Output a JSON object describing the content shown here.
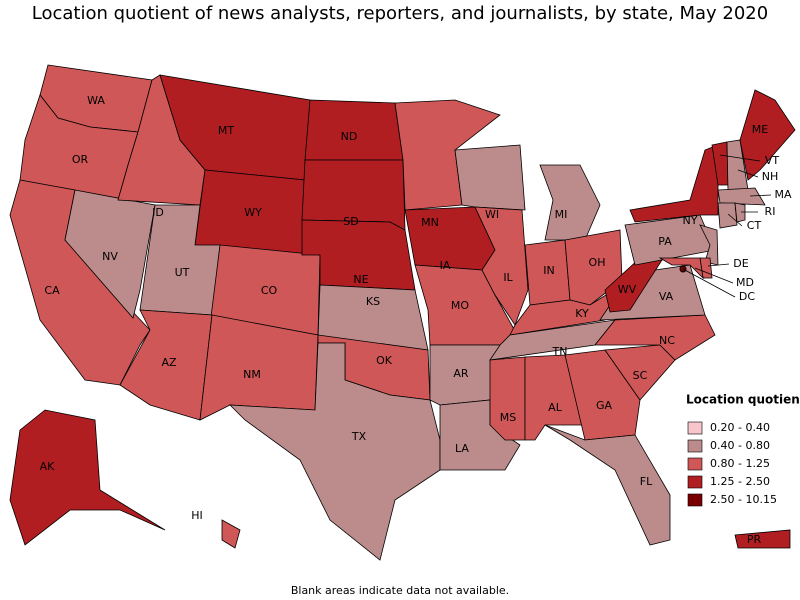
{
  "title": "Location quotient of news analysts, reporters, and journalists, by state, May 2020",
  "note": "Blank areas indicate data not available.",
  "legend": {
    "title": "Location quotient",
    "items": [
      {
        "label": "0.20 - 0.40",
        "color": "#f7c6cc"
      },
      {
        "label": "0.40 - 0.80",
        "color": "#bc8c8c"
      },
      {
        "label": "0.80 - 1.25",
        "color": "#cf5757"
      },
      {
        "label": "1.25 - 2.50",
        "color": "#b01e22"
      },
      {
        "label": "2.50 - 10.15",
        "color": "#7a0000"
      }
    ]
  },
  "states": [
    {
      "abbr": "WA",
      "class": "0.80 - 1.25"
    },
    {
      "abbr": "OR",
      "class": "0.80 - 1.25"
    },
    {
      "abbr": "CA",
      "class": "0.80 - 1.25"
    },
    {
      "abbr": "NV",
      "class": "0.40 - 0.80"
    },
    {
      "abbr": "ID",
      "class": "0.80 - 1.25"
    },
    {
      "abbr": "MT",
      "class": "1.25 - 2.50"
    },
    {
      "abbr": "WY",
      "class": "1.25 - 2.50"
    },
    {
      "abbr": "UT",
      "class": "0.40 - 0.80"
    },
    {
      "abbr": "CO",
      "class": "0.80 - 1.25"
    },
    {
      "abbr": "AZ",
      "class": "0.80 - 1.25"
    },
    {
      "abbr": "NM",
      "class": "0.80 - 1.25"
    },
    {
      "abbr": "ND",
      "class": "1.25 - 2.50"
    },
    {
      "abbr": "SD",
      "class": "1.25 - 2.50"
    },
    {
      "abbr": "NE",
      "class": "1.25 - 2.50"
    },
    {
      "abbr": "KS",
      "class": "0.40 - 0.80"
    },
    {
      "abbr": "OK",
      "class": "0.80 - 1.25"
    },
    {
      "abbr": "TX",
      "class": "0.40 - 0.80"
    },
    {
      "abbr": "MN",
      "class": "0.80 - 1.25"
    },
    {
      "abbr": "IA",
      "class": "1.25 - 2.50"
    },
    {
      "abbr": "MO",
      "class": "0.80 - 1.25"
    },
    {
      "abbr": "AR",
      "class": "0.40 - 0.80"
    },
    {
      "abbr": "LA",
      "class": "0.40 - 0.80"
    },
    {
      "abbr": "WI",
      "class": "0.40 - 0.80"
    },
    {
      "abbr": "IL",
      "class": "0.80 - 1.25"
    },
    {
      "abbr": "MI",
      "class": "0.40 - 0.80"
    },
    {
      "abbr": "IN",
      "class": "0.80 - 1.25"
    },
    {
      "abbr": "OH",
      "class": "0.80 - 1.25"
    },
    {
      "abbr": "KY",
      "class": "0.80 - 1.25"
    },
    {
      "abbr": "TN",
      "class": "0.40 - 0.80"
    },
    {
      "abbr": "MS",
      "class": "0.80 - 1.25"
    },
    {
      "abbr": "AL",
      "class": "0.80 - 1.25"
    },
    {
      "abbr": "GA",
      "class": "0.80 - 1.25"
    },
    {
      "abbr": "FL",
      "class": "0.40 - 0.80"
    },
    {
      "abbr": "SC",
      "class": "0.80 - 1.25"
    },
    {
      "abbr": "NC",
      "class": "0.80 - 1.25"
    },
    {
      "abbr": "VA",
      "class": "0.40 - 0.80"
    },
    {
      "abbr": "WV",
      "class": "1.25 - 2.50"
    },
    {
      "abbr": "PA",
      "class": "0.40 - 0.80"
    },
    {
      "abbr": "NY",
      "class": "1.25 - 2.50"
    },
    {
      "abbr": "VT",
      "class": "1.25 - 2.50"
    },
    {
      "abbr": "NH",
      "class": "0.40 - 0.80"
    },
    {
      "abbr": "ME",
      "class": "1.25 - 2.50"
    },
    {
      "abbr": "MA",
      "class": "0.40 - 0.80"
    },
    {
      "abbr": "CT",
      "class": "0.40 - 0.80"
    },
    {
      "abbr": "RI",
      "class": "0.40 - 0.80"
    },
    {
      "abbr": null,
      "class": "0.40 - 0.80"
    },
    {
      "abbr": "DE",
      "class": "0.80 - 1.25"
    },
    {
      "abbr": "MD",
      "class": "0.80 - 1.25"
    },
    {
      "abbr": "DC",
      "class": "2.50 - 10.15"
    },
    {
      "abbr": "AK",
      "class": "1.25 - 2.50"
    },
    {
      "abbr": "HI",
      "class": "0.80 - 1.25"
    },
    {
      "abbr": "PR",
      "class": "1.25 - 2.50"
    }
  ]
}
